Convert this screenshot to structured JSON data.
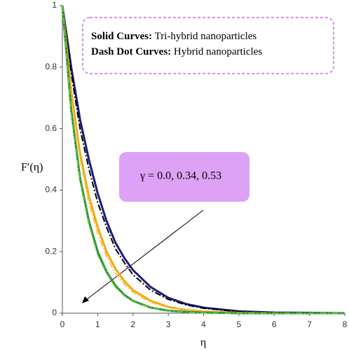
{
  "chart_data": {
    "type": "line",
    "x_label": "η",
    "y_label": "F′(η)",
    "annotations": {
      "legend_solid_key": "Solid Curves:",
      "legend_solid_text": "Tri-hybrid nanoparticles",
      "legend_dash_key": "Dash Dot Curves:",
      "legend_dash_text": "Hybrid nanoparticles",
      "arrow_label": "γ = 0.0, 0.34, 0.53"
    },
    "x": [
      0,
      0.25,
      0.5,
      0.75,
      1,
      1.25,
      1.5,
      1.75,
      2,
      2.5,
      3,
      3.5,
      4,
      5,
      6,
      7,
      8
    ],
    "series": [
      {
        "color": "#1c1c7c",
        "dash": false,
        "values": [
          1,
          0.8,
          0.63,
          0.5,
          0.39,
          0.3,
          0.23,
          0.18,
          0.14,
          0.085,
          0.05,
          0.03,
          0.018,
          0.006,
          0.002,
          0.001,
          0
        ]
      },
      {
        "color": "#000000",
        "dash": true,
        "values": [
          1,
          0.78,
          0.6,
          0.47,
          0.36,
          0.28,
          0.21,
          0.165,
          0.125,
          0.075,
          0.045,
          0.027,
          0.016,
          0.005,
          0.002,
          0.001,
          0
        ]
      },
      {
        "color": "#f5a800",
        "dash": false,
        "values": [
          1,
          0.72,
          0.52,
          0.38,
          0.28,
          0.2,
          0.145,
          0.105,
          0.075,
          0.04,
          0.02,
          0.01,
          0.005,
          0.001,
          0,
          0,
          0
        ]
      },
      {
        "color": "#f2c46a",
        "dash": true,
        "values": [
          1,
          0.7,
          0.5,
          0.36,
          0.26,
          0.185,
          0.13,
          0.095,
          0.068,
          0.035,
          0.018,
          0.009,
          0.004,
          0.001,
          0,
          0,
          0
        ]
      },
      {
        "color": "#22922a",
        "dash": false,
        "values": [
          1,
          0.66,
          0.44,
          0.3,
          0.2,
          0.135,
          0.09,
          0.06,
          0.04,
          0.018,
          0.008,
          0.004,
          0.002,
          0,
          0,
          0,
          0
        ]
      },
      {
        "color": "#6cc04a",
        "dash": true,
        "values": [
          1,
          0.65,
          0.43,
          0.29,
          0.19,
          0.13,
          0.085,
          0.057,
          0.038,
          0.017,
          0.007,
          0.003,
          0.001,
          0,
          0,
          0,
          0
        ]
      }
    ],
    "xlim": [
      0,
      8
    ],
    "ylim": [
      0,
      1
    ],
    "xticks": [
      0,
      1,
      2,
      3,
      4,
      5,
      6,
      7,
      8
    ],
    "yticks": [
      0,
      0.2,
      0.4,
      0.6,
      0.8,
      1
    ]
  }
}
